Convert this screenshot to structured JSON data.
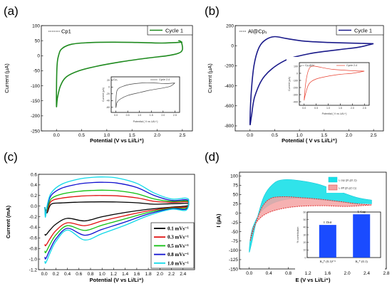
{
  "chart_data": [
    {
      "panel": "(a)",
      "type": "line",
      "ylabel": "Current (µA)",
      "xlabel": "Potential (V vs Li/Li⁺)",
      "xlim": [
        -0.3,
        2.7
      ],
      "ylim": [
        -250,
        100
      ],
      "xticks": [
        "0.0",
        "0.5",
        "1.0",
        "1.5",
        "2.0",
        "2.5"
      ],
      "yticks": [
        "100",
        "50",
        "0",
        "-50",
        "-100",
        "-150",
        "-200",
        "-250"
      ],
      "annotation": "Cp1",
      "legend": "Cycle 1",
      "color": "#1e8a1e",
      "series": [
        {
          "name": "Cycle 1",
          "x": [
            2.5,
            2.1,
            1.6,
            1.1,
            0.6,
            0.3,
            0.12,
            0.05,
            0.01,
            0.0,
            0.02,
            0.08,
            0.2,
            0.45,
            0.8,
            1.3,
            1.8,
            2.2,
            2.42,
            2.5,
            2.48,
            2.42
          ],
          "y": [
            45,
            42,
            44,
            45,
            43,
            38,
            25,
            5,
            -40,
            -165,
            -140,
            -100,
            -70,
            -50,
            -35,
            -20,
            -8,
            0,
            8,
            20,
            45,
            50
          ]
        }
      ],
      "inset": {
        "label": "Cp₁",
        "legend": "Cycle 2-4",
        "ylabel": "Current (µA)",
        "xlabel": "Potential ( V vs Li/Li⁺)",
        "xticks": [
          "0.0",
          "0.5",
          "1.0",
          "1.5",
          "2.0",
          "2.5"
        ],
        "yticks": [
          "20",
          "0",
          "-20",
          "-40",
          "-60"
        ],
        "xlim": [
          -0.2,
          2.7
        ],
        "ylim": [
          -75,
          30
        ],
        "series": [
          {
            "name": "Cycle 2-4",
            "x": [
              2.5,
              2.1,
              1.6,
              1.1,
              0.6,
              0.3,
              0.1,
              0.02,
              0.0,
              0.05,
              0.2,
              0.5,
              0.9,
              1.4,
              1.9,
              2.3,
              2.5
            ],
            "y": [
              12,
              10,
              12,
              12,
              8,
              2,
              -5,
              -20,
              -60,
              -45,
              -35,
              -25,
              -18,
              -10,
              -4,
              2,
              12
            ]
          }
        ]
      }
    },
    {
      "panel": "(b)",
      "type": "line",
      "ylabel": "Current (µA)",
      "xlabel": "Potential ( V vs Li/Li⁺)",
      "xlim": [
        -0.3,
        2.7
      ],
      "ylim": [
        -850,
        200
      ],
      "xticks": [
        "0.0",
        "0.5",
        "1.0",
        "1.5",
        "2.0",
        "2.5"
      ],
      "yticks": [
        "200",
        "0",
        "-200",
        "-400",
        "-600",
        "-800"
      ],
      "annotation": "Al@Cp₁",
      "legend": "Cycle 1",
      "color": "#1a1a8a",
      "series": [
        {
          "name": "Cycle 1",
          "x": [
            2.5,
            2.1,
            1.6,
            1.1,
            0.75,
            0.5,
            0.32,
            0.18,
            0.08,
            0.02,
            0.0,
            0.03,
            0.1,
            0.3,
            0.7,
            1.2,
            1.8,
            2.2,
            2.5
          ],
          "y": [
            20,
            25,
            32,
            45,
            70,
            90,
            60,
            -20,
            -200,
            -500,
            -780,
            -700,
            -500,
            -300,
            -150,
            -80,
            -40,
            -15,
            20
          ]
        }
      ],
      "inset": {
        "label": "Cp₁@Al",
        "legend": "Cycle 2-4",
        "ylabel": "Current (µA)",
        "xlabel": "Potential ( V vs Li/Li⁺)",
        "xticks": [
          "0.0",
          "0.5",
          "1.0",
          "1.5",
          "2.0",
          "2.5"
        ],
        "yticks": [
          "100",
          "0",
          "-100",
          "-200",
          "-300",
          "-400"
        ],
        "xlim": [
          -0.2,
          2.7
        ],
        "ylim": [
          -450,
          150
        ],
        "series": [
          {
            "name": "Cycle 2-4",
            "x": [
              2.5,
              2.1,
              1.6,
              1.2,
              0.9,
              0.6,
              0.35,
              0.2,
              0.08,
              0.0,
              0.05,
              0.2,
              0.5,
              1.0,
              1.5,
              2.0,
              2.5
            ],
            "y": [
              30,
              35,
              45,
              55,
              70,
              90,
              100,
              60,
              -100,
              -370,
              -300,
              -150,
              -80,
              -40,
              -15,
              0,
              30
            ]
          }
        ]
      }
    },
    {
      "panel": "(c)",
      "type": "line",
      "ylabel": "Current (mA)",
      "xlabel": "Potential (V vs Li/Li⁺)",
      "xlim": [
        -0.1,
        2.6
      ],
      "ylim": [
        -1.2,
        0.6
      ],
      "xticks": [
        "0.0",
        "0.2",
        "0.4",
        "0.6",
        "0.8",
        "1.0",
        "1.2",
        "1.4",
        "1.6",
        "1.8",
        "2.0",
        "2.2",
        "2.4"
      ],
      "yticks": [
        "0.6",
        "0.4",
        "0.2",
        "0.0",
        "-0.2",
        "-0.4",
        "-0.6",
        "-0.8",
        "-1.0",
        "-1.2"
      ],
      "series": [
        {
          "name": "0.1 mVs⁻¹",
          "color": "#000000",
          "peak": 0.08,
          "low": -0.55,
          "end": 0.05
        },
        {
          "name": "0.3 mVs⁻¹",
          "color": "#e01010",
          "peak": 0.2,
          "low": -0.75,
          "end": 0.08
        },
        {
          "name": "0.5 mVs⁻¹",
          "color": "#10c010",
          "peak": 0.3,
          "low": -0.88,
          "end": 0.1
        },
        {
          "name": "0.8 mVs⁻¹",
          "color": "#1010d0",
          "peak": 0.45,
          "low": -1.0,
          "end": 0.12
        },
        {
          "name": "1.0 mVs⁻¹",
          "color": "#10d8e8",
          "peak": 0.55,
          "low": -1.08,
          "end": 0.15
        }
      ]
    },
    {
      "panel": "(d)",
      "type": "area",
      "ylabel": "I (µA)",
      "xlabel": "E (V vs Li/Li⁺)",
      "xlim": [
        -0.2,
        2.8
      ],
      "ylim": [
        -150,
        110
      ],
      "xticks": [
        "0.0",
        "0.4",
        "0.8",
        "1.2",
        "1.6",
        "2.0",
        "2.4",
        "2.8"
      ],
      "yticks": [
        "100",
        "75",
        "50",
        "25",
        "0",
        "-25",
        "-50",
        "-75",
        "-100",
        "-125",
        "-150"
      ],
      "legend": [
        {
          "name": "i₁ cap ((K₁)(0.1))",
          "color": "#19e0e8"
        },
        {
          "name": "i₂ diff ((K₂)(0.1))",
          "color": "#f4a3a3"
        }
      ],
      "inset": {
        "type": "bar",
        "ylabel": "% contribution",
        "categories": [
          "K₂* (0.1)¹ᐟ²",
          "K₁* (0.1)"
        ],
        "bar_labels": [
          "I. Diff",
          "I. Cap"
        ],
        "values": [
          43,
          57
        ],
        "yticks": [
          "60",
          "50",
          "40",
          "30",
          "20",
          "10",
          "0"
        ],
        "ylim": [
          0,
          60
        ],
        "color": "#1a4bff"
      }
    }
  ]
}
